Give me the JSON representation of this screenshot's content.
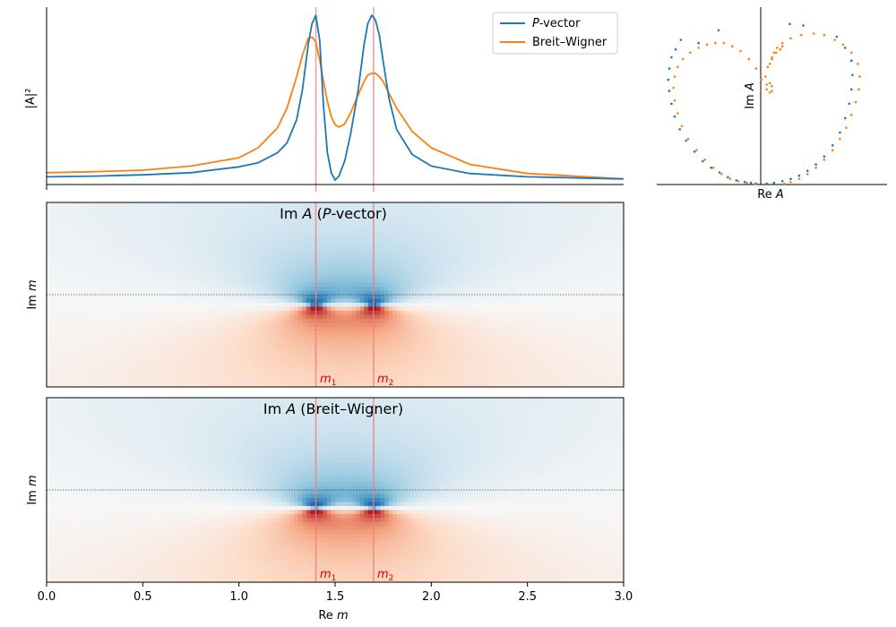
{
  "colors": {
    "pvector": "#1f77b4",
    "breit_wigner": "#ff7f0e",
    "resonance_line": "#f08080",
    "positive": "#67001f",
    "negative": "#053061"
  },
  "chart_data": [
    {
      "id": "intensity",
      "type": "line",
      "title": "",
      "xlabel": "",
      "ylabel": "|A|²",
      "xlim": [
        0.0,
        3.0
      ],
      "ylim": [
        0.0,
        1.05
      ],
      "legend_position": "top-right",
      "legend": [
        {
          "label_pre": "",
          "label_italic": "P",
          "label_post": "-vector"
        },
        {
          "label_pre": "Breit–Wigner",
          "label_italic": "",
          "label_post": ""
        }
      ],
      "series": [
        {
          "name": "P-vector",
          "x": [
            0.0,
            0.25,
            0.5,
            0.75,
            1.0,
            1.1,
            1.2,
            1.25,
            1.3,
            1.33,
            1.36,
            1.38,
            1.4,
            1.42,
            1.44,
            1.46,
            1.48,
            1.5,
            1.52,
            1.55,
            1.58,
            1.62,
            1.65,
            1.67,
            1.69,
            1.7,
            1.71,
            1.73,
            1.75,
            1.78,
            1.82,
            1.9,
            2.0,
            2.2,
            2.5,
            3.0
          ],
          "y": [
            0.025,
            0.029,
            0.037,
            0.05,
            0.085,
            0.11,
            0.17,
            0.23,
            0.37,
            0.55,
            0.82,
            0.95,
            1.0,
            0.85,
            0.45,
            0.17,
            0.05,
            0.005,
            0.03,
            0.12,
            0.28,
            0.55,
            0.82,
            0.95,
            1.0,
            0.99,
            0.97,
            0.88,
            0.72,
            0.5,
            0.31,
            0.16,
            0.09,
            0.045,
            0.025,
            0.012
          ]
        },
        {
          "name": "Breit–Wigner",
          "x": [
            0.0,
            0.25,
            0.5,
            0.75,
            1.0,
            1.1,
            1.2,
            1.25,
            1.3,
            1.33,
            1.36,
            1.38,
            1.4,
            1.42,
            1.44,
            1.46,
            1.48,
            1.5,
            1.52,
            1.55,
            1.58,
            1.62,
            1.65,
            1.67,
            1.69,
            1.7,
            1.71,
            1.73,
            1.75,
            1.78,
            1.82,
            1.9,
            2.0,
            2.2,
            2.5,
            3.0
          ],
          "y": [
            0.05,
            0.056,
            0.065,
            0.09,
            0.14,
            0.2,
            0.32,
            0.44,
            0.63,
            0.76,
            0.86,
            0.87,
            0.84,
            0.73,
            0.6,
            0.48,
            0.39,
            0.34,
            0.325,
            0.345,
            0.41,
            0.52,
            0.6,
            0.64,
            0.65,
            0.65,
            0.65,
            0.63,
            0.6,
            0.53,
            0.44,
            0.3,
            0.2,
            0.1,
            0.045,
            0.013
          ]
        }
      ],
      "resonances_x": [
        1.4,
        1.7
      ]
    },
    {
      "id": "argand",
      "type": "scatter",
      "title": "",
      "xlabel": "Re A",
      "ylabel": "Im A",
      "xlim": [
        -1.0,
        1.2
      ],
      "ylim": [
        0.0,
        1.06
      ],
      "series": [
        {
          "name": "P-vector",
          "x": [
            -0.05,
            -0.1,
            -0.16,
            -0.24,
            -0.32,
            -0.4,
            -0.48,
            -0.56,
            -0.64,
            -0.72,
            -0.78,
            -0.83,
            -0.86,
            -0.88,
            -0.89,
            -0.88,
            -0.86,
            -0.82,
            -0.77,
            -0.6,
            -0.41,
            0.05,
            0.12,
            0.2,
            0.28,
            0.36,
            0.44,
            0.52,
            0.6,
            0.68,
            0.75,
            0.8,
            0.84,
            0.86,
            0.87,
            0.86,
            0.8,
            0.72,
            0.4,
            0.27
          ],
          "y": [
            0.0,
            0.005,
            0.01,
            0.02,
            0.04,
            0.07,
            0.1,
            0.14,
            0.2,
            0.27,
            0.34,
            0.42,
            0.5,
            0.58,
            0.65,
            0.72,
            0.79,
            0.84,
            0.9,
            0.88,
            0.96,
            0.0,
            0.005,
            0.015,
            0.03,
            0.05,
            0.08,
            0.12,
            0.17,
            0.24,
            0.32,
            0.41,
            0.5,
            0.59,
            0.68,
            0.77,
            0.85,
            0.92,
            0.99,
            1.0
          ]
        },
        {
          "name": "Breit–Wigner",
          "x": [
            -0.06,
            -0.14,
            -0.22,
            -0.3,
            -0.38,
            -0.46,
            -0.54,
            -0.62,
            -0.7,
            -0.76,
            -0.8,
            -0.83,
            -0.84,
            -0.83,
            -0.8,
            -0.75,
            -0.68,
            -0.6,
            -0.52,
            -0.44,
            -0.36,
            -0.28,
            -0.2,
            -0.12,
            -0.05,
            0.0,
            0.05,
            0.08,
            0.1,
            0.1,
            0.08,
            0.05,
            0.04,
            0.06,
            0.1,
            0.14,
            0.18,
            0.2,
            0.22,
            0.28,
            0.36,
            0.44,
            0.52,
            0.6,
            0.68,
            0.75,
            0.81,
            0.86,
            0.9,
            0.93,
            0.94,
            0.92,
            0.86,
            0.78,
            0.7,
            0.6,
            0.5,
            0.38,
            0.28,
            0.2,
            0.15,
            0.12,
            0.1,
            0.08
          ],
          "y": [
            0.0,
            0.005,
            0.015,
            0.03,
            0.06,
            0.1,
            0.15,
            0.21,
            0.28,
            0.36,
            0.44,
            0.52,
            0.6,
            0.67,
            0.73,
            0.78,
            0.82,
            0.85,
            0.87,
            0.88,
            0.88,
            0.86,
            0.83,
            0.78,
            0.72,
            0.65,
            0.59,
            0.57,
            0.58,
            0.61,
            0.63,
            0.62,
            0.67,
            0.73,
            0.78,
            0.82,
            0.84,
            0.86,
            0.0,
            0.01,
            0.03,
            0.06,
            0.1,
            0.15,
            0.21,
            0.28,
            0.35,
            0.43,
            0.51,
            0.59,
            0.67,
            0.75,
            0.82,
            0.87,
            0.9,
            0.93,
            0.94,
            0.93,
            0.91,
            0.88,
            0.85,
            0.82,
            0.79,
            0.75
          ]
        }
      ]
    },
    {
      "id": "heatmap_pvector",
      "type": "heatmap",
      "title_pre": "Im ",
      "title_italic": "A",
      "title_mid": " (",
      "title_italic2": "P",
      "title_post": "-vector)",
      "xlabel": "",
      "ylabel": "Im m",
      "xlim": [
        0.0,
        3.0
      ],
      "ylim": [
        -1.0,
        1.0
      ],
      "colormap": "RdBu",
      "real_axis_line": "dotted",
      "poles": [
        [
          1.4,
          0.0
        ],
        [
          1.7,
          0.0
        ]
      ],
      "resonance_labels": [
        {
          "x": 1.4,
          "sym": "m",
          "sub": "1"
        },
        {
          "x": 1.7,
          "sym": "m",
          "sub": "2"
        }
      ]
    },
    {
      "id": "heatmap_breit_wigner",
      "type": "heatmap",
      "title_pre": "Im ",
      "title_italic": "A",
      "title_mid": " (Breit–Wigner)",
      "title_italic2": "",
      "title_post": "",
      "xlabel": "Re m",
      "ylabel": "Im m",
      "xlim": [
        0.0,
        3.0
      ],
      "ylim": [
        -1.0,
        1.0
      ],
      "colormap": "RdBu",
      "real_axis_line": "dotted",
      "poles": [
        [
          1.4,
          0.0
        ],
        [
          1.7,
          0.0
        ]
      ],
      "xticks": [
        "0.0",
        "0.5",
        "1.0",
        "1.5",
        "2.0",
        "2.5",
        "3.0"
      ],
      "resonance_labels": [
        {
          "x": 1.4,
          "sym": "m",
          "sub": "1"
        },
        {
          "x": 1.7,
          "sym": "m",
          "sub": "2"
        }
      ]
    }
  ]
}
